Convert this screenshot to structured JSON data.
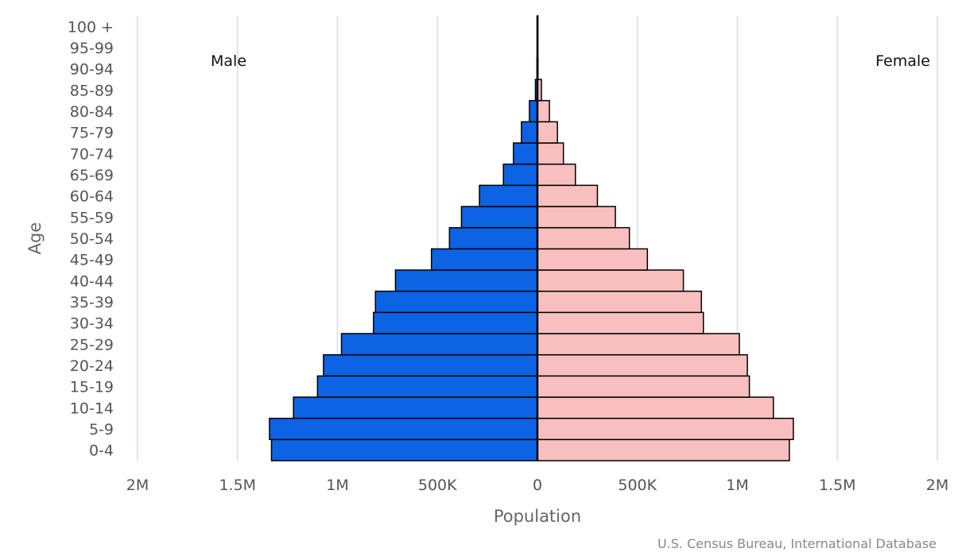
{
  "chart_data": {
    "type": "bar",
    "orientation": "horizontal-pyramid",
    "categories": [
      "0-4",
      "5-9",
      "10-14",
      "15-19",
      "20-24",
      "25-29",
      "30-34",
      "35-39",
      "40-44",
      "45-49",
      "50-54",
      "55-59",
      "60-64",
      "65-69",
      "70-74",
      "75-79",
      "80-84",
      "85-89",
      "90-94",
      "95-99",
      "100 +"
    ],
    "series": [
      {
        "name": "Male",
        "color": "#0c63e4",
        "values": [
          1330000,
          1340000,
          1220000,
          1100000,
          1070000,
          980000,
          820000,
          810000,
          710000,
          530000,
          440000,
          380000,
          290000,
          170000,
          120000,
          80000,
          40000,
          10000,
          2000,
          500,
          100
        ]
      },
      {
        "name": "Female",
        "color": "#f9bfbf",
        "values": [
          1260000,
          1280000,
          1180000,
          1060000,
          1050000,
          1010000,
          830000,
          820000,
          730000,
          550000,
          460000,
          390000,
          300000,
          190000,
          130000,
          100000,
          60000,
          20000,
          3000,
          700,
          100
        ]
      }
    ],
    "xlim": [
      -2000000,
      2000000
    ],
    "x_ticks": [
      {
        "value": -2000000,
        "label": "2M"
      },
      {
        "value": -1500000,
        "label": "1.5M"
      },
      {
        "value": -1000000,
        "label": "1M"
      },
      {
        "value": -500000,
        "label": "500K"
      },
      {
        "value": 0,
        "label": "0"
      },
      {
        "value": 500000,
        "label": "500K"
      },
      {
        "value": 1000000,
        "label": "1M"
      },
      {
        "value": 1500000,
        "label": "1.5M"
      },
      {
        "value": 2000000,
        "label": "2M"
      }
    ],
    "xlabel": "Population",
    "ylabel": "Age",
    "grid": true,
    "male_label": "Male",
    "female_label": "Female",
    "credit": "U.S. Census Bureau, International Database"
  }
}
